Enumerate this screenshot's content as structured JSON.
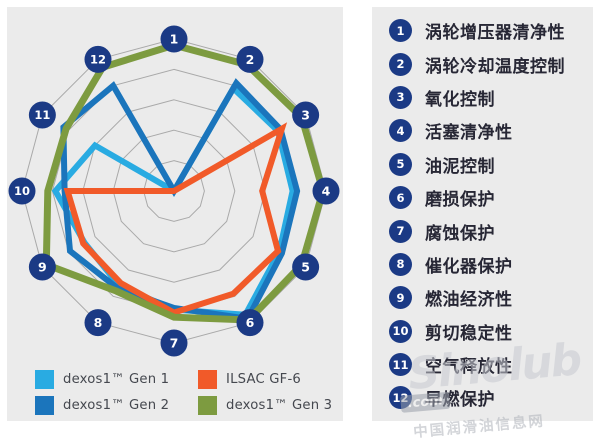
{
  "chart_data": {
    "type": "radar",
    "rings": 5,
    "max": 5,
    "grid_shape": "polygon-12",
    "axes": [
      {
        "num": "1",
        "label": "涡轮增压器清净性"
      },
      {
        "num": "2",
        "label": "涡轮冷却温度控制"
      },
      {
        "num": "3",
        "label": "氧化控制"
      },
      {
        "num": "4",
        "label": "活塞清净性"
      },
      {
        "num": "5",
        "label": "油泥控制"
      },
      {
        "num": "6",
        "label": "磨损保护"
      },
      {
        "num": "7",
        "label": "腐蚀保护"
      },
      {
        "num": "8",
        "label": "催化器保护"
      },
      {
        "num": "9",
        "label": "燃油经济性"
      },
      {
        "num": "10",
        "label": "剪切稳定性"
      },
      {
        "num": "11",
        "label": "空气释放性"
      },
      {
        "num": "12",
        "label": "早燃保护"
      }
    ],
    "series": [
      {
        "name": "dexos1™ Gen 1",
        "color": "#29abe2",
        "width": 6,
        "values": [
          0,
          3.9,
          3.95,
          3.9,
          4.0,
          4.7,
          3.9,
          3.6,
          3.4,
          3.9,
          3.0,
          0
        ]
      },
      {
        "name": "dexos1™ Gen 2",
        "color": "#1b75bc",
        "width": 6,
        "values": [
          0,
          4.1,
          4.05,
          4.05,
          4.1,
          4.85,
          3.85,
          3.7,
          3.95,
          3.6,
          4.2,
          4.0
        ]
      },
      {
        "name": "ILSAC GF-6",
        "color": "#f15a29",
        "width": 6,
        "values": [
          0,
          0,
          4.1,
          2.9,
          3.95,
          3.9,
          4.0,
          3.5,
          3.45,
          3.5,
          0,
          0
        ]
      },
      {
        "name": "dexos1™ Gen 3",
        "color": "#7d9b40",
        "width": 7,
        "values": [
          4.8,
          4.8,
          4.85,
          4.9,
          4.85,
          4.9,
          4.15,
          3.8,
          4.85,
          4.15,
          4.1,
          4.7
        ]
      }
    ]
  },
  "legend": {
    "display_order": [
      0,
      2,
      1,
      3
    ]
  },
  "watermark": {
    "brand": "Sinolub",
    "suffix": ".com",
    "caption": "中国润滑油信息网"
  },
  "colors": {
    "panel_bg": "#ebebeb",
    "page_bg": "#ffffff",
    "grid_line": "#a9a9a9",
    "axis_badge": "#1b3a85",
    "badge_text": "#ffffff",
    "list_text": "#272735",
    "legend_text": "#45484f"
  }
}
